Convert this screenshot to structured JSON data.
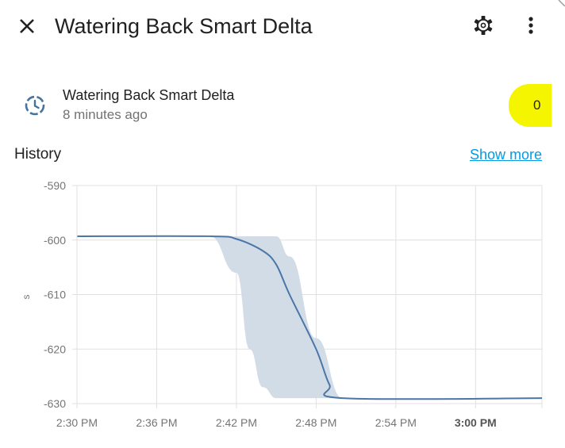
{
  "dialog": {
    "title": "Watering Back Smart Delta"
  },
  "entity": {
    "name": "Watering Back Smart Delta",
    "last_changed": "8 minutes ago",
    "value": "0"
  },
  "history": {
    "title": "History",
    "show_more": "Show more"
  },
  "icons": {
    "close": "close-icon",
    "settings": "gear-icon",
    "more": "dots-vertical-icon",
    "state": "clock-icon"
  },
  "colors": {
    "line": "#4a76a8",
    "band": "#d0dae6",
    "highlight": "#f5f500",
    "link": "#039be5"
  },
  "chart_data": {
    "type": "line",
    "ylabel": "s",
    "ylim": [
      -630,
      -590
    ],
    "yticks": [
      -590,
      -600,
      -610,
      -620,
      -630
    ],
    "xlim": [
      "2:30 PM",
      "3:05 PM"
    ],
    "xticks": [
      {
        "label": "2:30 PM",
        "bold": false
      },
      {
        "label": "2:36 PM",
        "bold": false
      },
      {
        "label": "2:42 PM",
        "bold": false
      },
      {
        "label": "2:48 PM",
        "bold": false
      },
      {
        "label": "2:54 PM",
        "bold": false
      },
      {
        "label": "3:00 PM",
        "bold": true
      }
    ],
    "grid": true,
    "series": [
      {
        "values": [
          {
            "x": "2:30 PM",
            "y": -599.3
          },
          {
            "x": "2:40 PM",
            "y": -599.3
          },
          {
            "x": "2:42 PM",
            "y": -599.8
          },
          {
            "x": "2:44 PM",
            "y": -602.0
          },
          {
            "x": "2:45 PM",
            "y": -604.5
          },
          {
            "x": "2:46 PM",
            "y": -610.0
          },
          {
            "x": "2:48 PM",
            "y": -620.0
          },
          {
            "x": "2:49 PM",
            "y": -626.5
          },
          {
            "x": "2:50 PM",
            "y": -629.0
          },
          {
            "x": "3:05 PM",
            "y": -629.0
          }
        ]
      }
    ],
    "band": {
      "upper": [
        {
          "x": "2:40 PM",
          "y": -599.3
        },
        {
          "x": "2:45 PM",
          "y": -599.3
        },
        {
          "x": "2:46 PM",
          "y": -603.0
        },
        {
          "x": "2:48 PM",
          "y": -618.0
        },
        {
          "x": "2:50 PM",
          "y": -629.0
        }
      ],
      "lower": [
        {
          "x": "2:40 PM",
          "y": -599.3
        },
        {
          "x": "2:42 PM",
          "y": -606.0
        },
        {
          "x": "2:43 PM",
          "y": -620.0
        },
        {
          "x": "2:44 PM",
          "y": -627.0
        },
        {
          "x": "2:45 PM",
          "y": -629.0
        },
        {
          "x": "2:50 PM",
          "y": -629.0
        }
      ]
    }
  }
}
